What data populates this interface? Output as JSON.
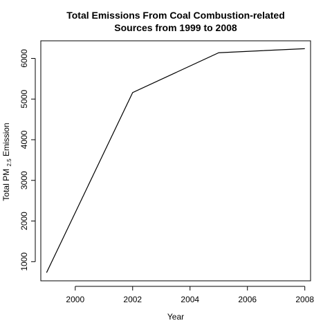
{
  "chart_data": {
    "type": "line",
    "title_lines": [
      "Total Emissions From Coal Combustion-related",
      "Sources from 1999 to 2008"
    ],
    "xlabel": "Year",
    "ylabel": {
      "prefix": "Total PM",
      "subscript": "2.5",
      "suffix": " Emission"
    },
    "x": [
      1999,
      2002,
      2005,
      2008
    ],
    "series": [
      {
        "values": [
          730,
          5160,
          6140,
          6240
        ]
      }
    ],
    "xlim": [
      1998.8,
      2008.2
    ],
    "ylim": [
      529,
      6433
    ],
    "xticks": [
      2000,
      2002,
      2004,
      2006,
      2008
    ],
    "xtick_labels": [
      "2000",
      "2002",
      "2004",
      "2006",
      "2008"
    ],
    "yticks": [
      1000,
      2000,
      3000,
      4000,
      5000,
      6000
    ],
    "ytick_labels": [
      "1000",
      "2000",
      "3000",
      "4000",
      "5000",
      "6000"
    ],
    "grid": false,
    "line_color": "#000000"
  }
}
